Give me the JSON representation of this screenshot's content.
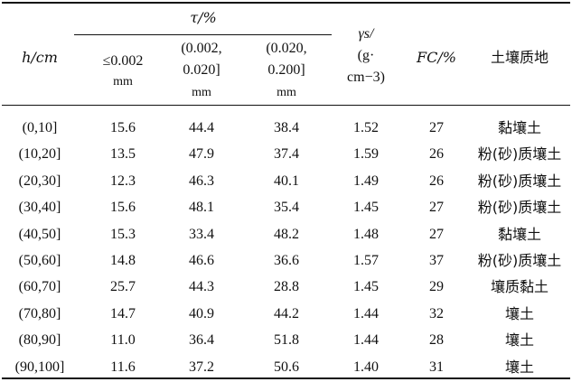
{
  "header": {
    "h": "h/cm",
    "tau": "τ/%",
    "tau_c1_line1": "≤0.002",
    "tau_c1_line2": "mm",
    "tau_c2_line1": "(0.002,",
    "tau_c2_line2": "0.020]",
    "tau_c2_line3": "mm",
    "tau_c3_line1": "(0.020,",
    "tau_c3_line2": "0.200]",
    "tau_c3_line3": "mm",
    "gamma_line1": "γs/",
    "gamma_line2": "(g·",
    "gamma_line3": "cm−3)",
    "fc": "FC/%",
    "soil": "土壤质地"
  },
  "rows": [
    {
      "h": "(0,10]",
      "c1": "15.6",
      "c2": "44.4",
      "c3": "38.4",
      "g": "1.52",
      "fc": "27",
      "soil": "黏壤土"
    },
    {
      "h": "(10,20]",
      "c1": "13.5",
      "c2": "47.9",
      "c3": "37.4",
      "g": "1.59",
      "fc": "26",
      "soil": "粉(砂)质壤土"
    },
    {
      "h": "(20,30]",
      "c1": "12.3",
      "c2": "46.3",
      "c3": "40.1",
      "g": "1.49",
      "fc": "26",
      "soil": "粉(砂)质壤土"
    },
    {
      "h": "(30,40]",
      "c1": "15.6",
      "c2": "48.1",
      "c3": "35.4",
      "g": "1.45",
      "fc": "27",
      "soil": "粉(砂)质壤土"
    },
    {
      "h": "(40,50]",
      "c1": "15.3",
      "c2": "33.4",
      "c3": "48.2",
      "g": "1.48",
      "fc": "27",
      "soil": "黏壤土"
    },
    {
      "h": "(50,60]",
      "c1": "14.8",
      "c2": "46.6",
      "c3": "36.6",
      "g": "1.57",
      "fc": "37",
      "soil": "粉(砂)质壤土"
    },
    {
      "h": "(60,70]",
      "c1": "25.7",
      "c2": "44.3",
      "c3": "28.8",
      "g": "1.45",
      "fc": "29",
      "soil": "壤质黏土"
    },
    {
      "h": "(70,80]",
      "c1": "14.7",
      "c2": "40.9",
      "c3": "44.2",
      "g": "1.44",
      "fc": "32",
      "soil": "壤土"
    },
    {
      "h": "(80,90]",
      "c1": "11.0",
      "c2": "36.4",
      "c3": "51.8",
      "g": "1.44",
      "fc": "28",
      "soil": "壤土"
    },
    {
      "h": "(90,100]",
      "c1": "11.6",
      "c2": "37.2",
      "c3": "50.6",
      "g": "1.40",
      "fc": "31",
      "soil": "壤土"
    }
  ]
}
